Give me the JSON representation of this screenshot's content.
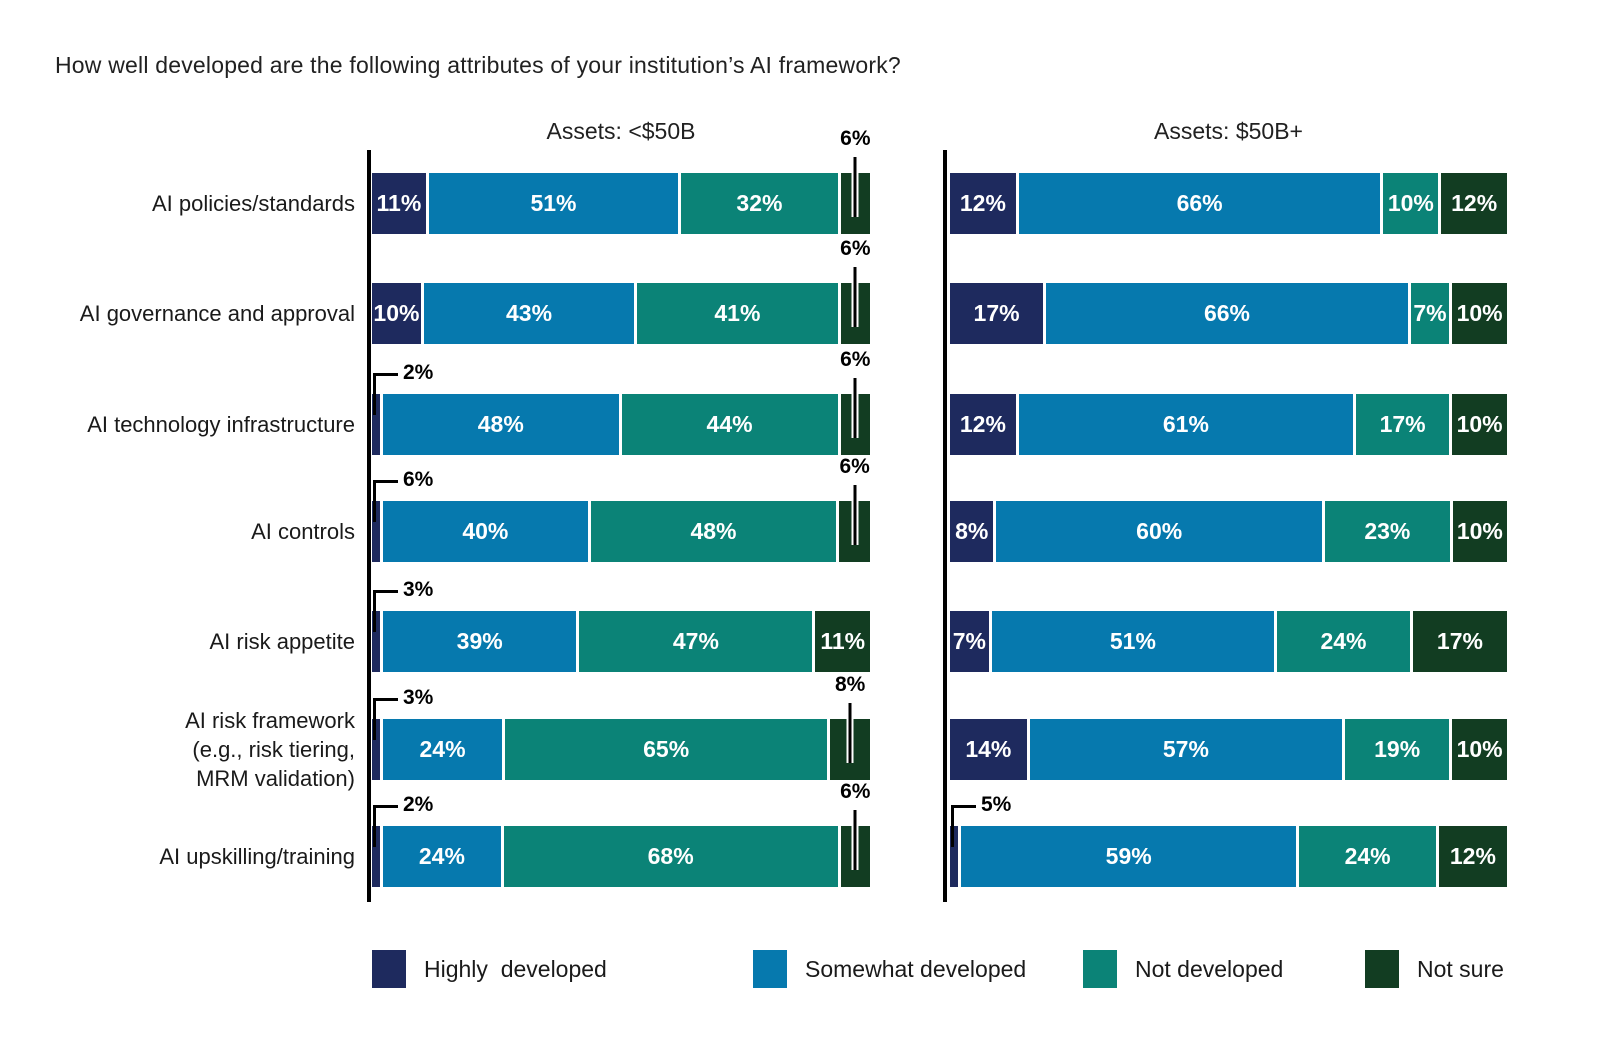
{
  "title": "How well developed are the following attributes of your institution’s AI framework?",
  "colors": {
    "highly_developed": "#1e2a5e",
    "somewhat_developed": "#0679ae",
    "not_developed": "#0b8377",
    "not_sure": "#123d22",
    "axis": "#000000",
    "in_bar_text": "#ffffff",
    "callout_text": "#000000"
  },
  "legend": [
    {
      "label": "Highly  developed",
      "color": "#1e2a5e"
    },
    {
      "label": "Somewhat developed",
      "color": "#0679ae"
    },
    {
      "label": "Not developed",
      "color": "#0b8377"
    },
    {
      "label": "Not sure",
      "color": "#123d22"
    }
  ],
  "chart_data": {
    "type": "bar",
    "variant": "horizontal-stacked-percent",
    "title": "How well developed are the following attributes of your institution’s AI framework?",
    "value_unit": "%",
    "xlim": [
      0,
      100
    ],
    "grid": false,
    "legend_position": "bottom",
    "categories": [
      "AI policies/standards",
      "AI governance and approval",
      "AI technology infrastructure",
      "AI controls",
      "AI risk appetite",
      "AI risk framework\n(e.g., risk tiering,\nMRM validation)",
      "AI upskilling/training"
    ],
    "series_names": [
      "Highly developed",
      "Somewhat developed",
      "Not developed",
      "Not sure"
    ],
    "panels": [
      {
        "title": "Assets: <$50B",
        "series": [
          {
            "name": "Highly developed",
            "values": [
              11,
              10,
              2,
              6,
              3,
              3,
              2
            ]
          },
          {
            "name": "Somewhat developed",
            "values": [
              51,
              43,
              48,
              40,
              39,
              24,
              24
            ]
          },
          {
            "name": "Not developed",
            "values": [
              32,
              41,
              44,
              48,
              47,
              65,
              68
            ]
          },
          {
            "name": "Not sure",
            "values": [
              6,
              6,
              6,
              6,
              11,
              8,
              6
            ]
          }
        ],
        "label_styles": [
          [
            "in",
            "in",
            "in",
            "tick"
          ],
          [
            "in",
            "in",
            "in",
            "tick"
          ],
          [
            "elbow",
            "in",
            "in",
            "tick"
          ],
          [
            "elbow",
            "in",
            "in",
            "tick"
          ],
          [
            "elbow",
            "in",
            "in",
            "in"
          ],
          [
            "elbow",
            "in",
            "in",
            "tick"
          ],
          [
            "elbow",
            "in",
            "in",
            "tick"
          ]
        ]
      },
      {
        "title": "Assets: $50B+",
        "series": [
          {
            "name": "Highly developed",
            "values": [
              12,
              17,
              12,
              8,
              7,
              14,
              5
            ]
          },
          {
            "name": "Somewhat developed",
            "values": [
              66,
              66,
              61,
              60,
              51,
              57,
              59
            ]
          },
          {
            "name": "Not developed",
            "values": [
              10,
              7,
              17,
              23,
              24,
              19,
              24
            ]
          },
          {
            "name": "Not sure",
            "values": [
              12,
              10,
              10,
              10,
              17,
              10,
              12
            ]
          }
        ],
        "label_styles": [
          [
            "in",
            "in",
            "in",
            "in"
          ],
          [
            "in",
            "in",
            "in",
            "in"
          ],
          [
            "in",
            "in",
            "in",
            "in"
          ],
          [
            "in",
            "in",
            "in",
            "in"
          ],
          [
            "in",
            "in",
            "in",
            "in"
          ],
          [
            "in",
            "in",
            "in",
            "in"
          ],
          [
            "elbow",
            "in",
            "in",
            "in"
          ]
        ]
      }
    ]
  }
}
